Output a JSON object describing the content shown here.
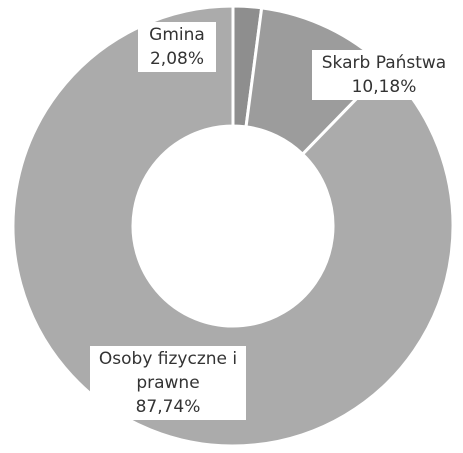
{
  "chart_data": {
    "type": "donut",
    "categories": [
      "Gmina",
      "Skarb Państwa",
      "Osoby fizyczne i prawne"
    ],
    "values": [
      2.08,
      10.18,
      87.74
    ],
    "value_labels": [
      "2,08%",
      "10,18%",
      "87,74%"
    ],
    "colors": [
      "#8e8e8e",
      "#9c9c9c",
      "#ababab"
    ]
  }
}
